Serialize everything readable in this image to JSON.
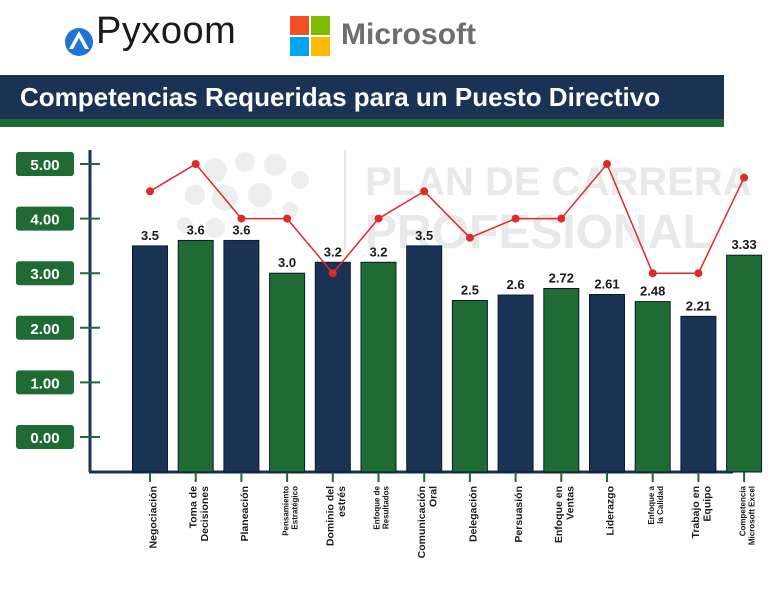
{
  "header": {
    "brand_pyxoom": "Pyxoom",
    "brand_microsoft": "Microsoft",
    "title": "Competencias Requeridas para un Puesto Directivo",
    "watermark_line1": "PLAN DE CARRERA",
    "watermark_line2": "PROFESIONAL"
  },
  "colors": {
    "navy": "#1a3355",
    "green": "#1f6b33",
    "line_red": "#e02929",
    "ms_red": "#f25022",
    "ms_green": "#7fba00",
    "ms_blue": "#00a4ef",
    "ms_yellow": "#ffb900"
  },
  "chart_data": {
    "type": "bar",
    "title": "Competencias Requeridas para un Puesto Directivo",
    "xlabel": "",
    "ylabel": "",
    "ylim": [
      0,
      5
    ],
    "y_tick_labels": [
      "0.00",
      "1.00",
      "2.00",
      "3.00",
      "4.00",
      "5.00"
    ],
    "grid": false,
    "categories": [
      [
        "Negociación"
      ],
      [
        "Toma de",
        "Decisiones"
      ],
      [
        "Planeación"
      ],
      [
        "Pensamiento",
        "Estratégico"
      ],
      [
        "Dominio del",
        "estrés"
      ],
      [
        "Enfoque de",
        "Resultados"
      ],
      [
        "Comunicación",
        "Oral"
      ],
      [
        "Delegación"
      ],
      [
        "Persuasión"
      ],
      [
        "Enfoque en",
        "Ventas"
      ],
      [
        "Liderazgo"
      ],
      [
        "Enfoque a",
        "la Calidad"
      ],
      [
        "Trabajo en",
        "Equipo"
      ],
      [
        "Competencia",
        "Microsoft Excel"
      ]
    ],
    "series": [
      {
        "type": "bar",
        "values": [
          3.5,
          3.6,
          3.6,
          3.0,
          3.2,
          3.2,
          3.5,
          2.5,
          2.6,
          2.72,
          2.61,
          2.48,
          2.21,
          3.33
        ],
        "labels": [
          "3.5",
          "3.6",
          "3.6",
          "3.0",
          "3.2",
          "3.2",
          "3.5",
          "2.5",
          "2.6",
          "2.72",
          "2.61",
          "2.48",
          "2.21",
          "3.33"
        ],
        "colors": [
          "navy",
          "green",
          "navy",
          "green",
          "navy",
          "green",
          "navy",
          "green",
          "navy",
          "green",
          "navy",
          "green",
          "navy",
          "green"
        ]
      },
      {
        "type": "line",
        "values": [
          4.5,
          5.0,
          4.0,
          4.0,
          3.0,
          4.0,
          4.5,
          3.65,
          4.0,
          4.0,
          5.0,
          3.0,
          3.0,
          4.75
        ]
      }
    ]
  }
}
